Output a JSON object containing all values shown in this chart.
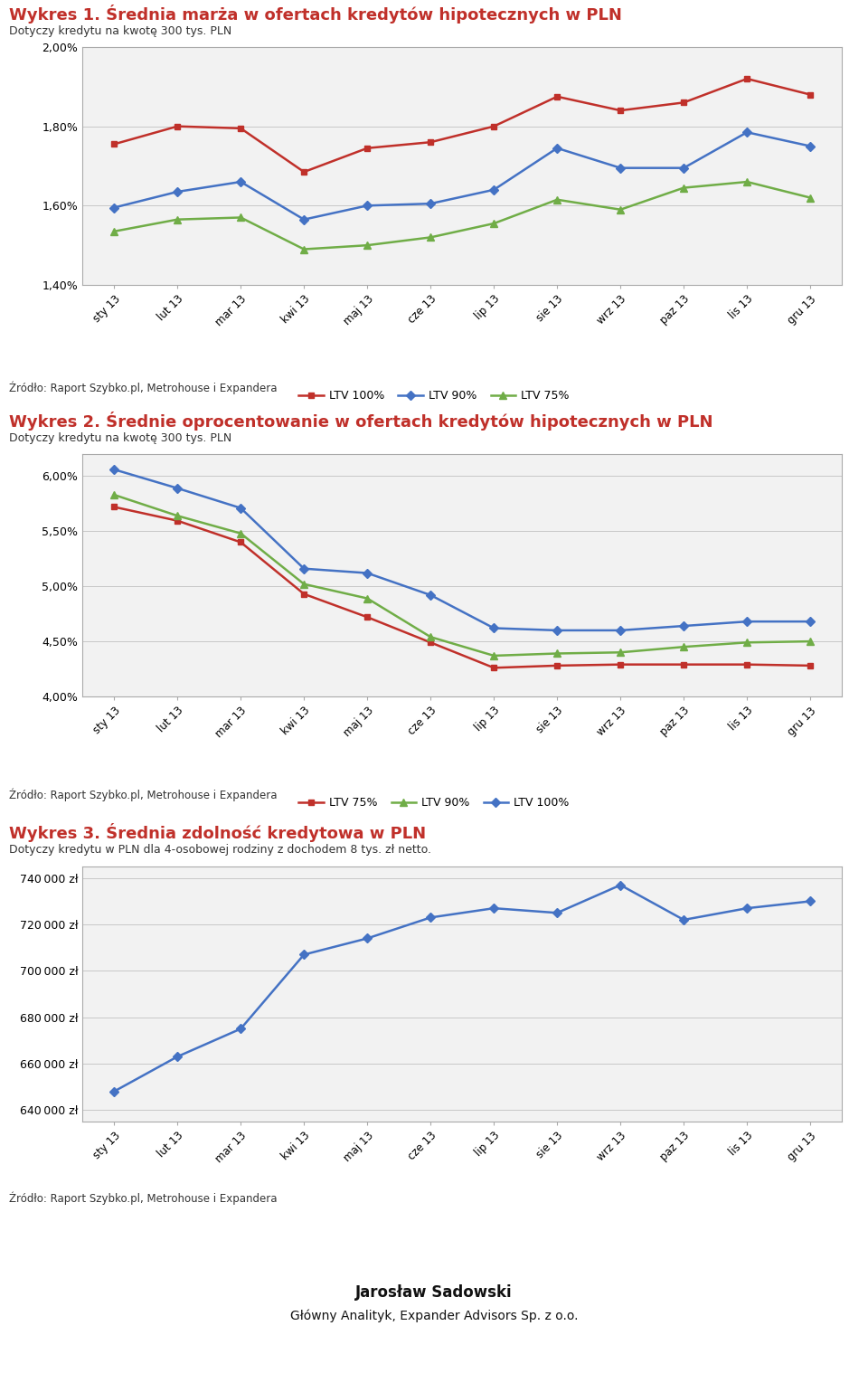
{
  "months": [
    "sty 13",
    "lut 13",
    "mar 13",
    "kwi 13",
    "maj 13",
    "cze 13",
    "lip 13",
    "sie 13",
    "wrz 13",
    "paz 13",
    "lis 13",
    "gru 13"
  ],
  "chart1": {
    "title": "Wykres 1. Średnia marża w ofertach kredytów hipotecznych w PLN",
    "subtitle": "Dotyczy kredytu na kwotę 300 tys. PLN",
    "ltv100": [
      1.755,
      1.8,
      1.795,
      1.685,
      1.745,
      1.76,
      1.8,
      1.875,
      1.84,
      1.86,
      1.92,
      1.88
    ],
    "ltv90": [
      1.595,
      1.635,
      1.66,
      1.565,
      1.6,
      1.605,
      1.64,
      1.745,
      1.695,
      1.695,
      1.785,
      1.75
    ],
    "ltv75": [
      1.535,
      1.565,
      1.57,
      1.49,
      1.5,
      1.52,
      1.555,
      1.615,
      1.59,
      1.645,
      1.66,
      1.62
    ],
    "ylim": [
      1.4,
      2.0
    ],
    "yticks": [
      1.4,
      1.6,
      1.8,
      2.0
    ],
    "source": "Źródło: Raport Szybko.pl, Metrohouse i Expandera",
    "legend": [
      "LTV 100%",
      "LTV 90%",
      "LTV 75%"
    ],
    "colors": [
      "#c0302a",
      "#4472c4",
      "#70ad47"
    ]
  },
  "chart2": {
    "title": "Wykres 2. Średnie oprocentowanie w ofertach kredytów hipotecznych w PLN",
    "subtitle": "Dotyczy kredytu na kwotę 300 tys. PLN",
    "ltv75": [
      5.72,
      5.595,
      5.4,
      4.93,
      4.72,
      4.49,
      4.26,
      4.28,
      4.29,
      4.29,
      4.29,
      4.28
    ],
    "ltv90": [
      5.83,
      5.64,
      5.48,
      5.02,
      4.89,
      4.54,
      4.37,
      4.39,
      4.4,
      4.45,
      4.49,
      4.5
    ],
    "ltv100": [
      6.06,
      5.89,
      5.71,
      5.16,
      5.12,
      4.92,
      4.62,
      4.6,
      4.6,
      4.64,
      4.68,
      4.68
    ],
    "ylim": [
      4.0,
      6.2
    ],
    "yticks": [
      4.0,
      4.5,
      5.0,
      5.5,
      6.0
    ],
    "source": "Źródło: Raport Szybko.pl, Metrohouse i Expandera",
    "legend": [
      "LTV 75%",
      "LTV 90%",
      "LTV 100%"
    ],
    "colors": [
      "#c0302a",
      "#70ad47",
      "#4472c4"
    ]
  },
  "chart3": {
    "title": "Wykres 3. Średnia zdolność kredytowa w PLN",
    "subtitle": "Dotyczy kredytu w PLN dla 4-osobowej rodziny z dochodem 8 tys. zł netto.",
    "values": [
      648000,
      663000,
      675000,
      707000,
      714000,
      723000,
      727000,
      725000,
      737000,
      722000,
      727000,
      730000
    ],
    "ylim": [
      635000,
      745000
    ],
    "yticks": [
      640000,
      660000,
      680000,
      700000,
      720000,
      740000
    ],
    "source": "Źródło: Raport Szybko.pl, Metrohouse i Expandera",
    "color": "#4472c4"
  },
  "footer_name": "Jarosław Sadowski",
  "footer_title": "Główny Analityk, Expander Advisors Sp. z o.o.",
  "background_color": "#ffffff",
  "chart_bg": "#f2f2f2",
  "grid_color": "#c8c8c8",
  "title_color": "#c0302a",
  "subtitle_color": "#333333",
  "source_color": "#333333",
  "border_color": "#aaaaaa"
}
